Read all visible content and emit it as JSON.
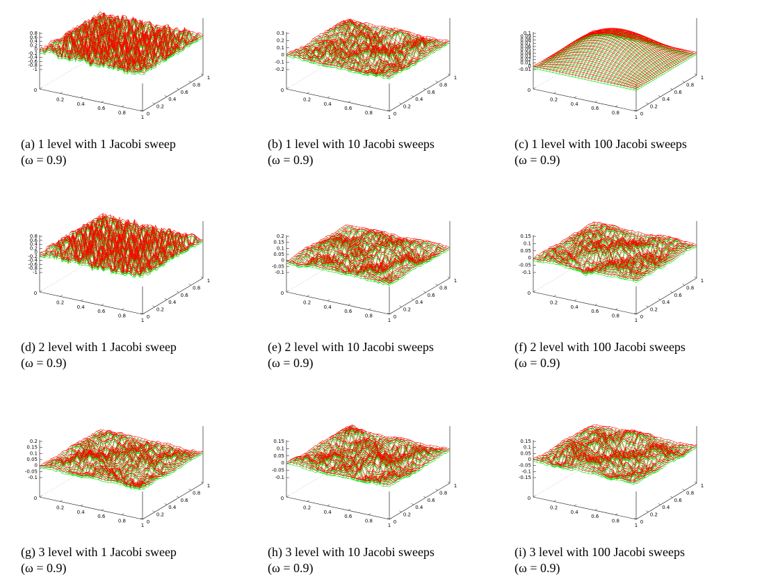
{
  "xticks": [
    0,
    0.2,
    0.4,
    0.6,
    0.8,
    1
  ],
  "yticks": [
    0,
    0.2,
    0.4,
    0.6,
    0.8,
    1
  ],
  "panels": [
    {
      "caption": "(a) 1 level with 1 Jacobi sweep",
      "param": "(ω = 0.9)",
      "zticks": [
        0.8,
        0.6,
        0.4,
        0.2,
        0,
        -0.2,
        -0.4,
        -0.6,
        -0.8,
        -1
      ]
    },
    {
      "caption": "(b) 1 level with 10 Jacobi sweeps",
      "param": "(ω = 0.9)",
      "zticks": [
        0.3,
        0.2,
        0.1,
        0,
        -0.1,
        -0.2
      ]
    },
    {
      "caption": "(c) 1 level with 100 Jacobi sweeps",
      "param": "(ω = 0.9)",
      "zticks": [
        0.1,
        0.09,
        0.08,
        0.07,
        0.06,
        0.05,
        0.04,
        0.03,
        0.02,
        0.01,
        0,
        -0.01
      ]
    },
    {
      "caption": "(d) 2 level with 1 Jacobi sweep",
      "param": "(ω = 0.9)",
      "zticks": [
        0.8,
        0.6,
        0.4,
        0.2,
        0,
        -0.2,
        -0.4,
        -0.6,
        -0.8,
        -1
      ]
    },
    {
      "caption": "(e) 2 level with 10 Jacobi sweeps",
      "param": "(ω = 0.9)",
      "zticks": [
        0.2,
        0.15,
        0.1,
        0.05,
        0,
        -0.05,
        -0.1
      ]
    },
    {
      "caption": "(f) 2 level with 100 Jacobi sweeps",
      "param": "(ω = 0.9)",
      "zticks": [
        0.15,
        0.1,
        0.05,
        0,
        -0.05,
        -0.1
      ]
    },
    {
      "caption": "(g) 3 level with 1 Jacobi sweep",
      "param": "(ω = 0.9)",
      "zticks": [
        0.2,
        0.15,
        0.1,
        0.05,
        0,
        -0.05,
        -0.1
      ]
    },
    {
      "caption": "(h) 3 level with 10 Jacobi sweeps",
      "param": "(ω = 0.9)",
      "zticks": [
        0.15,
        0.1,
        0.05,
        0,
        -0.05,
        -0.1
      ]
    },
    {
      "caption": "(i) 3 level with 100 Jacobi sweeps",
      "param": "(ω = 0.9)",
      "zticks": [
        0.15,
        0.1,
        0.05,
        0,
        -0.05,
        -0.1,
        -0.15
      ]
    }
  ]
}
